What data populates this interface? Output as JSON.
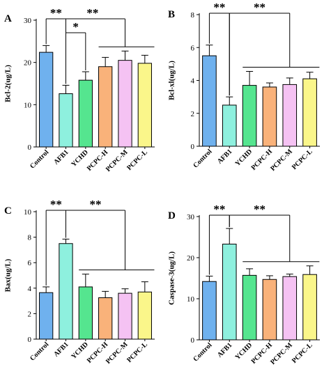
{
  "chart_data": [
    {
      "type": "bar",
      "panel": "A",
      "ylabel": "Bcl-2(ug/L)",
      "ylim": [
        0,
        30
      ],
      "yticks": [
        0,
        10,
        20,
        30
      ],
      "categories": [
        "Control",
        "AFB1",
        "YCHD",
        "PCPC-H",
        "PCPC-M",
        "PCPC-L"
      ],
      "values": [
        22.4,
        12.6,
        15.8,
        19.0,
        20.5,
        19.8
      ],
      "errors": [
        1.6,
        2.0,
        2.0,
        2.2,
        2.2,
        1.9
      ],
      "significance": [
        {
          "label": "**",
          "from": 0,
          "to": [
            1
          ]
        },
        {
          "label": "*",
          "from": 1,
          "to": [
            2
          ]
        },
        {
          "label": "**",
          "from": 0,
          "to": [
            3,
            4,
            5
          ]
        }
      ]
    },
    {
      "type": "bar",
      "panel": "B",
      "ylabel": "Bcl-xl(ug/L)",
      "ylim": [
        0,
        8
      ],
      "yticks": [
        0,
        2,
        4,
        6,
        8
      ],
      "categories": [
        "Control",
        "AFB1",
        "YCHD",
        "PCPC-H",
        "PCPC-M",
        "PCPC-L"
      ],
      "values": [
        5.5,
        2.5,
        3.7,
        3.6,
        3.75,
        4.1
      ],
      "errors": [
        0.65,
        0.5,
        0.85,
        0.25,
        0.4,
        0.4
      ],
      "significance": [
        {
          "label": "**",
          "from": 0,
          "to": [
            1
          ]
        },
        {
          "label": "**",
          "from": 1,
          "to": [
            2,
            3,
            4,
            5
          ]
        }
      ]
    },
    {
      "type": "bar",
      "panel": "C",
      "ylabel": "Bax(ug/L)",
      "ylim": [
        0,
        10
      ],
      "yticks": [
        0,
        2,
        4,
        6,
        8,
        10
      ],
      "categories": [
        "Control",
        "AFB1",
        "YCHD",
        "PCPC-H",
        "PCPC-M",
        "PCPC-L"
      ],
      "values": [
        3.65,
        7.5,
        4.1,
        3.25,
        3.6,
        3.7
      ],
      "errors": [
        0.45,
        0.35,
        1.0,
        0.5,
        0.35,
        0.8
      ],
      "significance": [
        {
          "label": "**",
          "from": 0,
          "to": [
            1
          ]
        },
        {
          "label": "**",
          "from": 1,
          "to": [
            2,
            3,
            4,
            5
          ]
        }
      ]
    },
    {
      "type": "bar",
      "panel": "D",
      "ylabel": "Caspase-3(ug/L)",
      "ylim": [
        0,
        30
      ],
      "yticks": [
        0,
        10,
        20,
        30
      ],
      "categories": [
        "Control",
        "AFB1",
        "YCHD",
        "PCPC-H",
        "PCPC-M",
        "PCPC-L"
      ],
      "values": [
        14.2,
        23.3,
        15.7,
        14.7,
        15.4,
        15.9
      ],
      "errors": [
        1.3,
        3.8,
        1.6,
        0.9,
        0.6,
        2.1
      ],
      "significance": [
        {
          "label": "**",
          "from": 0,
          "to": [
            1
          ]
        },
        {
          "label": "**",
          "from": 1,
          "to": [
            2,
            3,
            4,
            5
          ]
        }
      ]
    }
  ],
  "colors": [
    "#6FB1EE",
    "#8EF0DE",
    "#55E58F",
    "#F9B27A",
    "#F5C2F3",
    "#FAF68A"
  ]
}
